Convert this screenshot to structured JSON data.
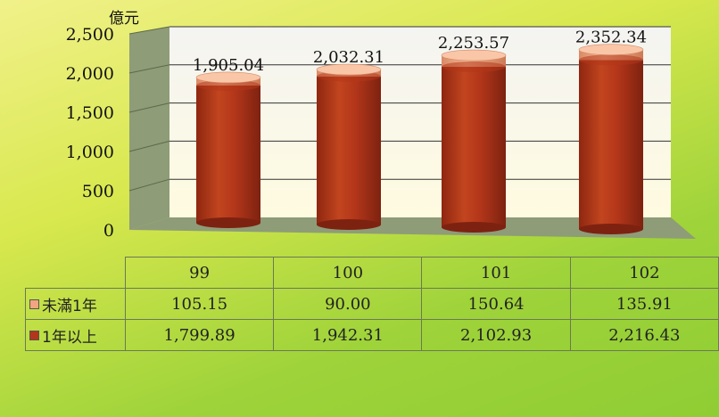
{
  "chart_data": {
    "type": "bar",
    "unit": "億元",
    "categories": [
      "99",
      "100",
      "101",
      "102"
    ],
    "series": [
      {
        "name": "1年以上",
        "values": [
          1799.89,
          1942.31,
          2102.93,
          2216.43
        ],
        "color": "#b3361a"
      },
      {
        "name": "未滿1年",
        "values": [
          105.15,
          90.0,
          150.64,
          135.91
        ],
        "color": "#f1a581"
      }
    ],
    "totals": [
      1905.04,
      2032.31,
      2253.57,
      2352.34
    ],
    "total_labels": [
      "1,905.04",
      "2,032.31",
      "2,253.57",
      "2,352.34"
    ],
    "ylim": [
      0,
      2500
    ],
    "yticks": [
      0,
      500,
      1000,
      1500,
      2000,
      2500
    ],
    "ytick_labels": [
      "0",
      "500",
      "1,000",
      "1,500",
      "2,000",
      "2,500"
    ],
    "grid": true
  },
  "table": {
    "rows": [
      {
        "label": "未滿1年",
        "color": "#f1a581",
        "cells": [
          "105.15",
          "90.00",
          "150.64",
          "135.91"
        ]
      },
      {
        "label": "1年以上",
        "color": "#b3361a",
        "cells": [
          "1,799.89",
          "1,942.31",
          "2,102.93",
          "2,216.43"
        ]
      }
    ]
  }
}
